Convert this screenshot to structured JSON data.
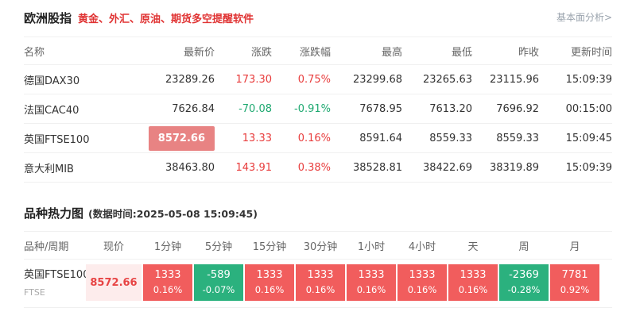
{
  "header": {
    "title": "欧洲股指",
    "subtitle": "黄金、外汇、原油、期货多空提醒软件",
    "fundamental_link": "基本面分析>"
  },
  "colors": {
    "up_text": "#e83c3c",
    "down_text": "#1fa971",
    "up_cell_bg": "#f15d5d",
    "down_cell_bg": "#2bb17e",
    "highlight_price_bg": "#e88383",
    "current_price_bg": "#fdecec",
    "subtitle_red": "#e03333"
  },
  "quotes_table": {
    "columns": [
      "名称",
      "最新价",
      "涨跌",
      "涨跌幅",
      "最高",
      "最低",
      "昨收",
      "更新时间"
    ],
    "rows": [
      {
        "name": "德国DAX30",
        "price": "23289.26",
        "change": "173.30",
        "change_pct": "0.75%",
        "high": "23299.68",
        "low": "23265.63",
        "prev_close": "23115.96",
        "time": "15:09:39",
        "trend": "up",
        "highlight": false
      },
      {
        "name": "法国CAC40",
        "price": "7626.84",
        "change": "-70.08",
        "change_pct": "-0.91%",
        "high": "7678.95",
        "low": "7613.20",
        "prev_close": "7696.92",
        "time": "00:15:00",
        "trend": "down",
        "highlight": false
      },
      {
        "name": "英国FTSE100",
        "price": "8572.66",
        "change": "13.33",
        "change_pct": "0.16%",
        "high": "8591.64",
        "low": "8559.33",
        "prev_close": "8559.33",
        "time": "15:09:45",
        "trend": "up",
        "highlight": true
      },
      {
        "name": "意大利MIB",
        "price": "38463.80",
        "change": "143.91",
        "change_pct": "0.38%",
        "high": "38528.81",
        "low": "38422.69",
        "prev_close": "38319.89",
        "time": "15:09:39",
        "trend": "up",
        "highlight": false
      }
    ]
  },
  "heatmap": {
    "title": "品种热力图",
    "data_time": "(数据时间:2025-05-08 15:09:45)",
    "columns": [
      "品种/周期",
      "现价",
      "1分钟",
      "5分钟",
      "15分钟",
      "30分钟",
      "1小时",
      "4小时",
      "天",
      "周",
      "月"
    ],
    "rows": [
      {
        "name": "英国FTSE100",
        "code": "FTSE",
        "price": "8572.66",
        "cells": [
          {
            "period": "1分钟",
            "value": "1333",
            "pct": "0.16%",
            "trend": "up"
          },
          {
            "period": "5分钟",
            "value": "-589",
            "pct": "-0.07%",
            "trend": "down"
          },
          {
            "period": "15分钟",
            "value": "1333",
            "pct": "0.16%",
            "trend": "up"
          },
          {
            "period": "30分钟",
            "value": "1333",
            "pct": "0.16%",
            "trend": "up"
          },
          {
            "period": "1小时",
            "value": "1333",
            "pct": "0.16%",
            "trend": "up"
          },
          {
            "period": "4小时",
            "value": "1333",
            "pct": "0.16%",
            "trend": "up"
          },
          {
            "period": "天",
            "value": "1333",
            "pct": "0.16%",
            "trend": "up"
          },
          {
            "period": "周",
            "value": "-2369",
            "pct": "-0.28%",
            "trend": "down"
          },
          {
            "period": "月",
            "value": "7781",
            "pct": "0.92%",
            "trend": "up"
          }
        ]
      }
    ]
  }
}
